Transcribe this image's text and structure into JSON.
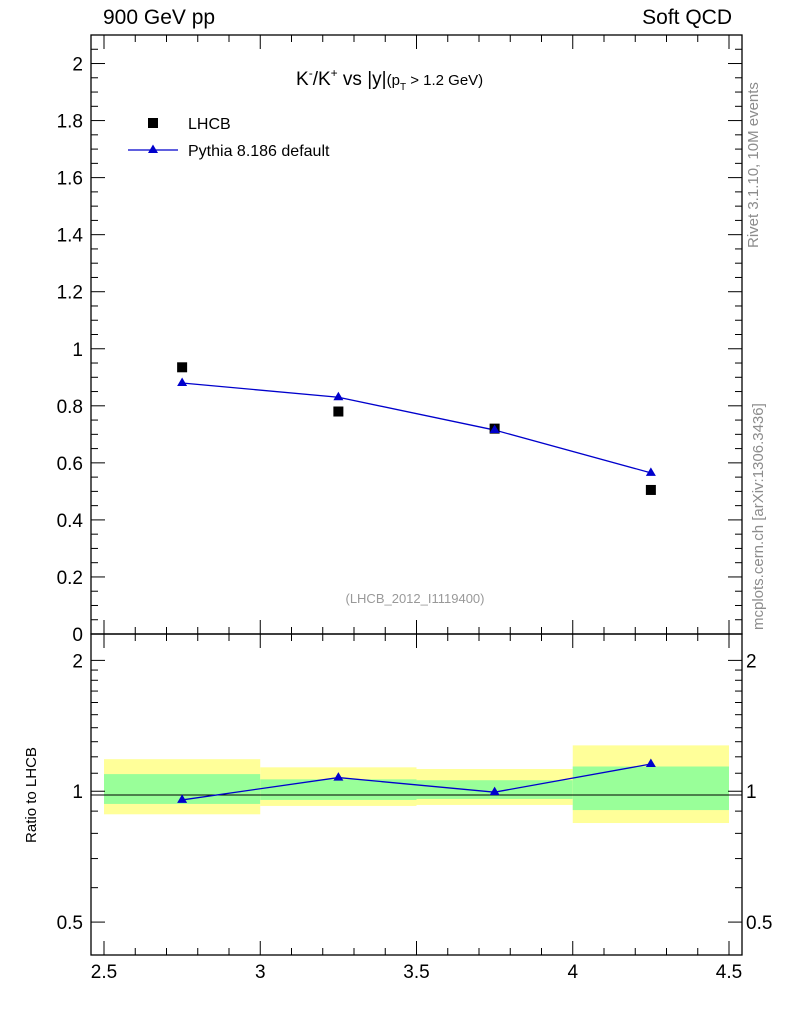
{
  "header": {
    "left": "900 GeV pp",
    "right": "Soft QCD"
  },
  "side_labels": {
    "rivet": "Rivet 3.1.10,  10M events",
    "mcplots": "mcplots.cern.ch [arXiv:1306.3436]"
  },
  "colors": {
    "data": "#000000",
    "mc": "#0000cc",
    "band_inner": "#99ff99",
    "band_outer": "#ffff99",
    "watermark": "#999999"
  },
  "chart_data": [
    {
      "type": "scatter",
      "title_parts": {
        "k_minus": "K",
        "minus_sup": "-",
        "slash_k": "/K",
        "plus_sup": "+",
        "vs_y": " vs |y|",
        "cut_open": "(p",
        "cut_sub": "T",
        "cut_rest": " > 1.2 GeV)"
      },
      "watermark": "(LHCB_2012_I1119400)",
      "xlim": [
        2.5,
        4.5
      ],
      "ylim": [
        0,
        2.1
      ],
      "yticks": [
        "0",
        "0.2",
        "0.4",
        "0.6",
        "0.8",
        "1",
        "1.2",
        "1.4",
        "1.6",
        "1.8",
        "2"
      ],
      "ytick_values": [
        0,
        0.2,
        0.4,
        0.6,
        0.8,
        1,
        1.2,
        1.4,
        1.6,
        1.8,
        2
      ],
      "legend_position": "top-left",
      "series": [
        {
          "name": "LHCB",
          "marker": "square",
          "x": [
            2.75,
            3.25,
            3.75,
            4.25
          ],
          "y": [
            0.935,
            0.78,
            0.72,
            0.505
          ]
        },
        {
          "name": "Pythia 8.186 default",
          "marker": "triangle",
          "line": true,
          "x": [
            2.75,
            3.25,
            3.75,
            4.25
          ],
          "y": [
            0.88,
            0.83,
            0.715,
            0.565
          ]
        }
      ]
    },
    {
      "type": "line",
      "ylabel": "Ratio to LHCB",
      "xlim": [
        2.5,
        4.5
      ],
      "ylim": [
        0.42,
        2.3
      ],
      "log_y": true,
      "xticks": [
        "2.5",
        "3",
        "3.5",
        "4",
        "4.5"
      ],
      "xtick_values": [
        2.5,
        3,
        3.5,
        4,
        4.5
      ],
      "yticks": [
        "0.5",
        "1",
        "2"
      ],
      "ytick_values": [
        0.5,
        1,
        2
      ],
      "bands": [
        {
          "x0": 2.5,
          "x1": 3.0,
          "outer": [
            0.885,
            1.185
          ],
          "inner": [
            0.935,
            1.095
          ]
        },
        {
          "x0": 3.0,
          "x1": 3.5,
          "outer": [
            0.925,
            1.135
          ],
          "inner": [
            0.955,
            1.065
          ]
        },
        {
          "x0": 3.5,
          "x1": 4.0,
          "outer": [
            0.93,
            1.125
          ],
          "inner": [
            0.96,
            1.06
          ]
        },
        {
          "x0": 4.0,
          "x1": 4.5,
          "outer": [
            0.845,
            1.275
          ],
          "inner": [
            0.905,
            1.14
          ]
        }
      ],
      "series": [
        {
          "name": "Pythia 8.186 default",
          "x": [
            2.75,
            3.25,
            3.75,
            4.25
          ],
          "y": [
            0.955,
            1.075,
            0.995,
            1.155
          ]
        }
      ]
    }
  ]
}
